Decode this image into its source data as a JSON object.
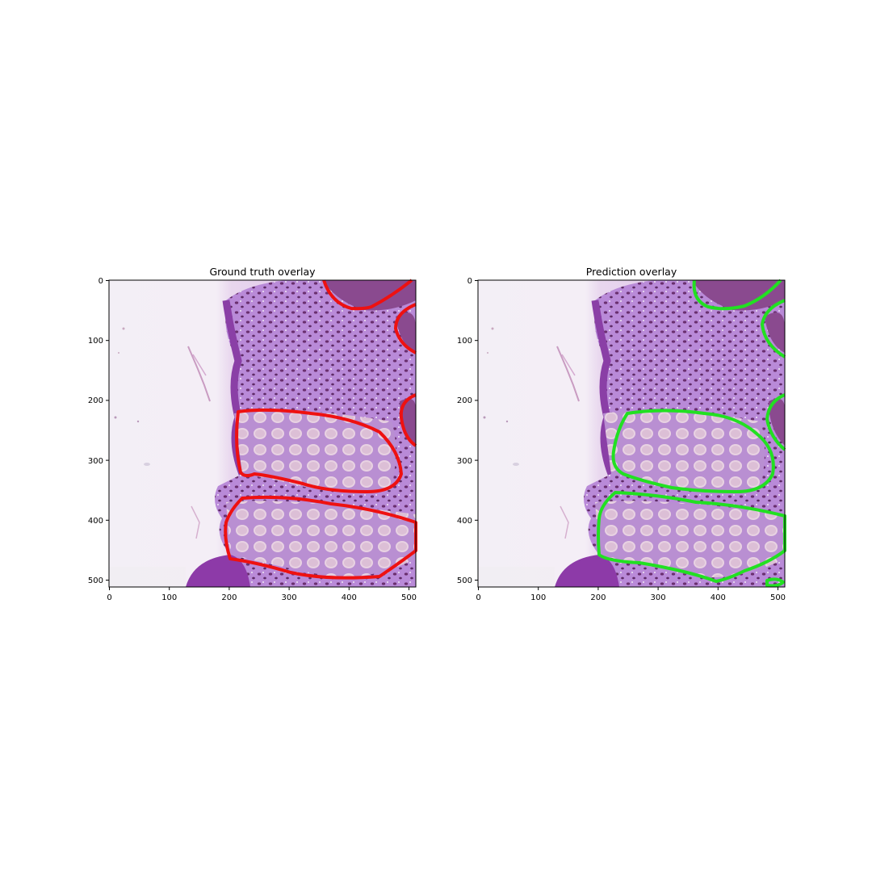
{
  "figure": {
    "panels": [
      {
        "title": "Ground truth overlay",
        "xticks": [
          "0",
          "100",
          "200",
          "300",
          "400",
          "500"
        ],
        "yticks": [
          "0",
          "100",
          "200",
          "300",
          "400",
          "500"
        ],
        "contour_color": "#ee1111"
      },
      {
        "title": "Prediction overlay",
        "xticks": [
          "0",
          "100",
          "200",
          "300",
          "400",
          "500"
        ],
        "yticks": [
          "0",
          "100",
          "200",
          "300",
          "400",
          "500"
        ],
        "contour_color": "#22e022"
      }
    ]
  }
}
